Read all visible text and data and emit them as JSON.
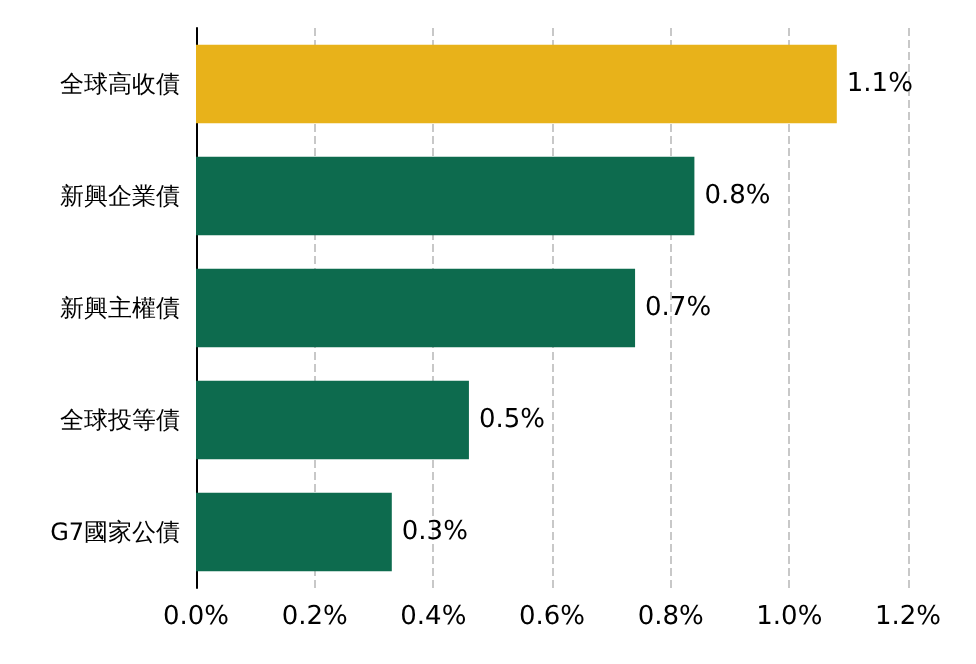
{
  "chart_data": {
    "type": "bar",
    "orientation": "horizontal",
    "categories": [
      "全球高收債",
      "新興企業債",
      "新興主權債",
      "全球投等債",
      "G7國家公債"
    ],
    "values": [
      1.08,
      0.84,
      0.74,
      0.46,
      0.33
    ],
    "colors": [
      "#e8b21a",
      "#0d6b4e",
      "#0d6b4e",
      "#0d6b4e",
      "#0d6b4e"
    ],
    "value_labels": [
      "1.1%",
      "0.8%",
      "0.7%",
      "0.5%",
      "0.3%"
    ],
    "xlim": [
      0,
      1.2
    ],
    "xticks": [
      {
        "value": 0,
        "label": "0.0%"
      },
      {
        "value": 0.2,
        "label": "0.2%"
      },
      {
        "value": 0.4,
        "label": "0.4%"
      },
      {
        "value": 0.6,
        "label": "0.6%"
      },
      {
        "value": 0.8,
        "label": "0.8%"
      },
      {
        "value": 1.0,
        "label": "1.0%"
      },
      {
        "value": 1.2,
        "label": "1.2%"
      }
    ],
    "grid": "x"
  }
}
